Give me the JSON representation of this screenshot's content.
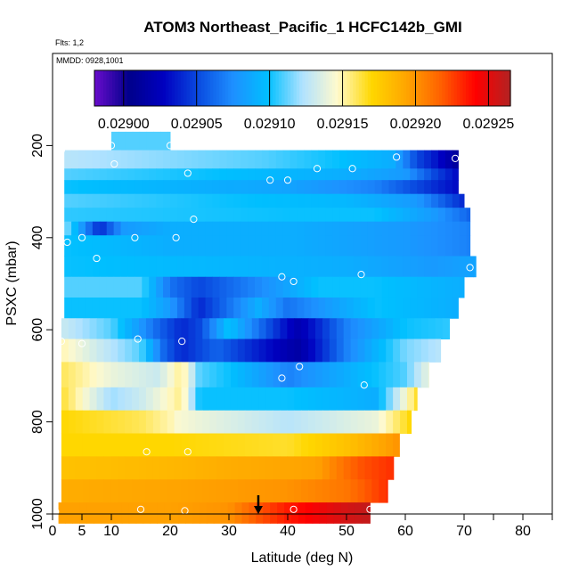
{
  "chart_data": {
    "type": "heatmap",
    "title": "ATOM3 Northeast_Pacific_1 HCFC142b_GMI",
    "subtitle_flights": "Flts: 1,2",
    "subtitle_dates": "MMDD: 0928,1001",
    "xlabel": "Latitude (deg N)",
    "ylabel": "PSXC (mbar)",
    "xlim": [
      0,
      85
    ],
    "ylim": [
      1000,
      0
    ],
    "xticks": [
      "0",
      "5",
      "10",
      "20",
      "30",
      "40",
      "50",
      "60",
      "70",
      "80"
    ],
    "xtick_values": [
      0,
      5,
      10,
      20,
      30,
      40,
      50,
      60,
      70,
      80
    ],
    "yticks": [
      "200",
      "400",
      "600",
      "800",
      "1000"
    ],
    "ytick_values": [
      200,
      400,
      600,
      800,
      1000
    ],
    "colorbar": {
      "range": [
        0.02898,
        0.029265
      ],
      "ticks": [
        "0.02900",
        "0.02905",
        "0.02910",
        "0.02915",
        "0.02920",
        "0.02925"
      ],
      "tick_values": [
        0.029,
        0.02905,
        0.0291,
        0.02915,
        0.0292,
        0.02925
      ],
      "colors": [
        "#6a0dcc",
        "#00008b",
        "#0000c0",
        "#0a4be0",
        "#1e90ff",
        "#00bfff",
        "#b0e2ff",
        "#fffacd",
        "#ffd700",
        "#ffa500",
        "#ff6000",
        "#ff0000",
        "#b22222"
      ]
    },
    "layers": [
      {
        "p": [
          170,
          210
        ],
        "x": [
          10,
          20
        ],
        "v": [
          0.02911,
          0.02911
        ]
      },
      {
        "p": [
          210,
          250
        ],
        "x": [
          2,
          36,
          48,
          58,
          62,
          65,
          69
        ],
        "v": [
          0.029125,
          0.02911,
          0.0291,
          0.02909,
          0.02905,
          0.029035,
          0.02901
        ]
      },
      {
        "p": [
          250,
          275
        ],
        "x": [
          2,
          50,
          60,
          65,
          69
        ],
        "v": [
          0.02911,
          0.02909,
          0.02908,
          0.02905,
          0.02903
        ]
      },
      {
        "p": [
          275,
          305
        ],
        "x": [
          2,
          40,
          55,
          62,
          69
        ],
        "v": [
          0.0291,
          0.029085,
          0.02907,
          0.02905,
          0.02903
        ]
      },
      {
        "p": [
          305,
          335
        ],
        "x": [
          2,
          30,
          50,
          62,
          70
        ],
        "v": [
          0.02911,
          0.0291,
          0.029095,
          0.02908,
          0.02904
        ]
      },
      {
        "p": [
          335,
          365
        ],
        "x": [
          2,
          40,
          55,
          65,
          71
        ],
        "v": [
          0.029105,
          0.0291,
          0.0291,
          0.02908,
          0.02906
        ]
      },
      {
        "p": [
          365,
          395
        ],
        "x": [
          2,
          5,
          8,
          12,
          20,
          40,
          60,
          71
        ],
        "v": [
          0.02912,
          0.02908,
          0.02904,
          0.02908,
          0.02909,
          0.02909,
          0.02908,
          0.02907
        ]
      },
      {
        "p": [
          395,
          440
        ],
        "x": [
          2,
          20,
          40,
          60,
          71
        ],
        "v": [
          0.0291,
          0.02909,
          0.02909,
          0.02908,
          0.02907
        ]
      },
      {
        "p": [
          440,
          485
        ],
        "x": [
          2,
          50,
          65,
          72
        ],
        "v": [
          0.0291,
          0.02909,
          0.02908,
          0.029085
        ]
      },
      {
        "p": [
          485,
          530
        ],
        "x": [
          2,
          15,
          20,
          25,
          38,
          45,
          55,
          70
        ],
        "v": [
          0.02911,
          0.02911,
          0.029065,
          0.02905,
          0.02908,
          0.0291,
          0.0291,
          0.02909
        ]
      },
      {
        "p": [
          530,
          575
        ],
        "x": [
          2,
          15,
          20,
          25,
          35,
          40,
          55,
          69
        ],
        "v": [
          0.0291,
          0.0291,
          0.02908,
          0.02904,
          0.02909,
          0.029065,
          0.0291,
          0.02909
        ]
      },
      {
        "p": [
          575,
          620
        ],
        "x": [
          1.5,
          10,
          18,
          22,
          25,
          30,
          40,
          42,
          50,
          60,
          67.5
        ],
        "v": [
          0.02913,
          0.02911,
          0.02906,
          0.02904,
          0.02905,
          0.0291,
          0.02903,
          0.02902,
          0.02907,
          0.0291,
          0.029105
        ]
      },
      {
        "p": [
          620,
          670
        ],
        "x": [
          1.5,
          8,
          15,
          19,
          22,
          28,
          40,
          42,
          50,
          60,
          66
        ],
        "v": [
          0.02915,
          0.02913,
          0.02911,
          0.02906,
          0.02904,
          0.02906,
          0.02902,
          0.029015,
          0.02907,
          0.029115,
          0.029125
        ]
      },
      {
        "p": [
          670,
          725
        ],
        "x": [
          1.5,
          10,
          18,
          22,
          25,
          30,
          40,
          50,
          60,
          64
        ],
        "v": [
          0.02916,
          0.02914,
          0.02913,
          0.029155,
          0.02911,
          0.0291,
          0.02907,
          0.02909,
          0.02911,
          0.02914
        ]
      },
      {
        "p": [
          725,
          775
        ],
        "x": [
          1.5,
          10,
          15,
          22,
          25,
          40,
          55,
          62
        ],
        "v": [
          0.029165,
          0.02912,
          0.02913,
          0.029155,
          0.0291,
          0.0291,
          0.02909,
          0.029165
        ]
      },
      {
        "p": [
          775,
          825
        ],
        "x": [
          1.5,
          15,
          20,
          21,
          25,
          40,
          55,
          61
        ],
        "v": [
          0.02917,
          0.02916,
          0.02915,
          0.029145,
          0.02914,
          0.029125,
          0.02914,
          0.02917
        ]
      },
      {
        "p": [
          825,
          875
        ],
        "x": [
          1.5,
          20,
          40,
          50,
          59
        ],
        "v": [
          0.02917,
          0.02917,
          0.029165,
          0.02918,
          0.0292
        ]
      },
      {
        "p": [
          875,
          925
        ],
        "x": [
          1.5,
          20,
          30,
          45,
          52,
          58
        ],
        "v": [
          0.02918,
          0.029185,
          0.02919,
          0.029195,
          0.02922,
          0.02923
        ]
      },
      {
        "p": [
          925,
          975
        ],
        "x": [
          1.5,
          25,
          40,
          50,
          57
        ],
        "v": [
          0.02919,
          0.029195,
          0.0292,
          0.02921,
          0.02923
        ]
      },
      {
        "p": [
          975,
          1020
        ],
        "x": [
          1,
          10,
          20,
          30,
          35,
          40,
          45,
          50,
          54
        ],
        "v": [
          0.029195,
          0.029195,
          0.029195,
          0.0292,
          0.02922,
          0.029235,
          0.029245,
          0.029255,
          0.02926
        ]
      }
    ],
    "points": [
      [
        1.5,
        210
      ],
      [
        10,
        200
      ],
      [
        20,
        200
      ],
      [
        10.5,
        240
      ],
      [
        58.5,
        225
      ],
      [
        68.5,
        228
      ],
      [
        23,
        260
      ],
      [
        37,
        275
      ],
      [
        40,
        275
      ],
      [
        45,
        250
      ],
      [
        51,
        250
      ],
      [
        24,
        360
      ],
      [
        2.5,
        410
      ],
      [
        5,
        400
      ],
      [
        14,
        400
      ],
      [
        21,
        400
      ],
      [
        7.5,
        445
      ],
      [
        39,
        485
      ],
      [
        41,
        495
      ],
      [
        52.5,
        480
      ],
      [
        71,
        465
      ],
      [
        1.5,
        625
      ],
      [
        5,
        630
      ],
      [
        14.5,
        620
      ],
      [
        22,
        625
      ],
      [
        42,
        680
      ],
      [
        39,
        705
      ],
      [
        53,
        720
      ],
      [
        16,
        865
      ],
      [
        23,
        865
      ],
      [
        0.5,
        995
      ],
      [
        15,
        990
      ],
      [
        22.5,
        993
      ],
      [
        41,
        990
      ],
      [
        54,
        990
      ]
    ],
    "marker_arrow_lat": 35
  }
}
